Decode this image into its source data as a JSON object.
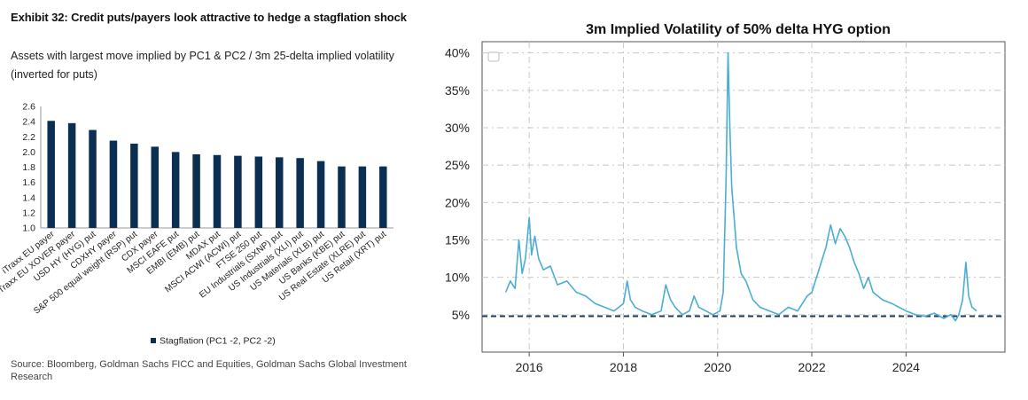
{
  "left": {
    "exhibit_title": "Exhibit 32: Credit puts/payers look attractive to hedge a stagflation shock",
    "subtitle": "Assets with largest move implied by PC1 & PC2 / 3m 25-delta implied volatility (inverted for puts)",
    "source": "Source: Bloomberg, Goldman Sachs FICC and Equities, Goldman Sachs Global Investment Research"
  },
  "colors": {
    "bar": "#0b2f52",
    "line": "#4aaed0",
    "dashed": "#1f3a5f",
    "grid": "#c8c8c8"
  },
  "chart_data": [
    {
      "type": "bar",
      "title": "",
      "categories": [
        "iTraxx EU payer",
        "iTraxx EU XOVER payer",
        "USD HY (HYG) put",
        "CDXHY payer",
        "S&P 500 equal weight (RSP) put",
        "CDX payer",
        "MSCI EAFE put",
        "EMBI (EMB) put",
        "MDAX put",
        "MSCI ACWI (ACWI) put",
        "FTSE 250 put",
        "EU Industrials (SXNP) put",
        "US Industrials (XLI) put",
        "US Materials (XLB) put",
        "US Banks (KBE) put",
        "US Real Estate (XLRE) put",
        "US Retail (XRT) put"
      ],
      "series": [
        {
          "name": "Stagflation (PC1 -2, PC2 -2)",
          "values": [
            2.41,
            2.38,
            2.29,
            2.15,
            2.11,
            2.07,
            2.0,
            1.97,
            1.96,
            1.95,
            1.94,
            1.93,
            1.92,
            1.88,
            1.81,
            1.81,
            1.81
          ]
        }
      ],
      "ylim": [
        1.0,
        2.6
      ],
      "yticks": [
        "1.0",
        "1.2",
        "1.4",
        "1.6",
        "1.8",
        "2.0",
        "2.2",
        "2.4",
        "2.6"
      ],
      "legend": "bottom"
    },
    {
      "type": "line",
      "title": "3m Implied Volatility of 50% delta HYG option",
      "xlabel": "",
      "ylabel": "",
      "xlim": [
        2015.0,
        2026.1
      ],
      "ylim": [
        0,
        41.5
      ],
      "xticks": [
        "2016",
        "2018",
        "2020",
        "2022",
        "2024"
      ],
      "yticks": [
        "5%",
        "10%",
        "15%",
        "20%",
        "25%",
        "30%",
        "35%",
        "40%"
      ],
      "reference_line": 4.8,
      "x": [
        2015.5,
        2015.6,
        2015.7,
        2015.78,
        2015.85,
        2015.92,
        2016.0,
        2016.05,
        2016.12,
        2016.2,
        2016.3,
        2016.45,
        2016.6,
        2016.8,
        2017.0,
        2017.2,
        2017.4,
        2017.6,
        2017.8,
        2018.0,
        2018.08,
        2018.15,
        2018.25,
        2018.4,
        2018.6,
        2018.8,
        2018.9,
        2019.0,
        2019.1,
        2019.25,
        2019.4,
        2019.5,
        2019.6,
        2019.75,
        2019.9,
        2020.05,
        2020.12,
        2020.18,
        2020.22,
        2020.26,
        2020.3,
        2020.35,
        2020.4,
        2020.5,
        2020.6,
        2020.75,
        2020.9,
        2021.1,
        2021.3,
        2021.5,
        2021.7,
        2021.9,
        2022.0,
        2022.1,
        2022.2,
        2022.3,
        2022.4,
        2022.5,
        2022.6,
        2022.7,
        2022.8,
        2022.9,
        2023.0,
        2023.1,
        2023.2,
        2023.3,
        2023.5,
        2023.7,
        2023.85,
        2024.0,
        2024.2,
        2024.4,
        2024.6,
        2024.8,
        2024.95,
        2025.05,
        2025.12,
        2025.2,
        2025.27,
        2025.33,
        2025.4,
        2025.5
      ],
      "y": [
        8.0,
        9.5,
        8.5,
        15.0,
        10.5,
        12.5,
        18.0,
        13.0,
        15.5,
        12.5,
        11.0,
        11.5,
        9.0,
        9.5,
        8.0,
        7.5,
        6.5,
        6.0,
        5.5,
        6.5,
        9.5,
        7.0,
        6.0,
        5.5,
        5.0,
        5.5,
        9.0,
        7.0,
        6.0,
        5.0,
        5.5,
        7.5,
        6.0,
        5.5,
        5.0,
        5.5,
        8.0,
        23.0,
        40.0,
        30.0,
        22.0,
        18.0,
        14.0,
        10.5,
        9.5,
        7.0,
        6.0,
        5.5,
        5.0,
        6.0,
        5.5,
        7.5,
        8.0,
        10.0,
        12.0,
        14.0,
        17.0,
        14.5,
        16.5,
        15.5,
        14.0,
        12.0,
        10.5,
        8.5,
        10.0,
        8.0,
        7.0,
        6.5,
        6.0,
        5.5,
        5.0,
        4.8,
        5.2,
        4.5,
        5.0,
        4.2,
        5.0,
        7.0,
        12.0,
        7.5,
        6.0,
        5.5
      ]
    }
  ]
}
